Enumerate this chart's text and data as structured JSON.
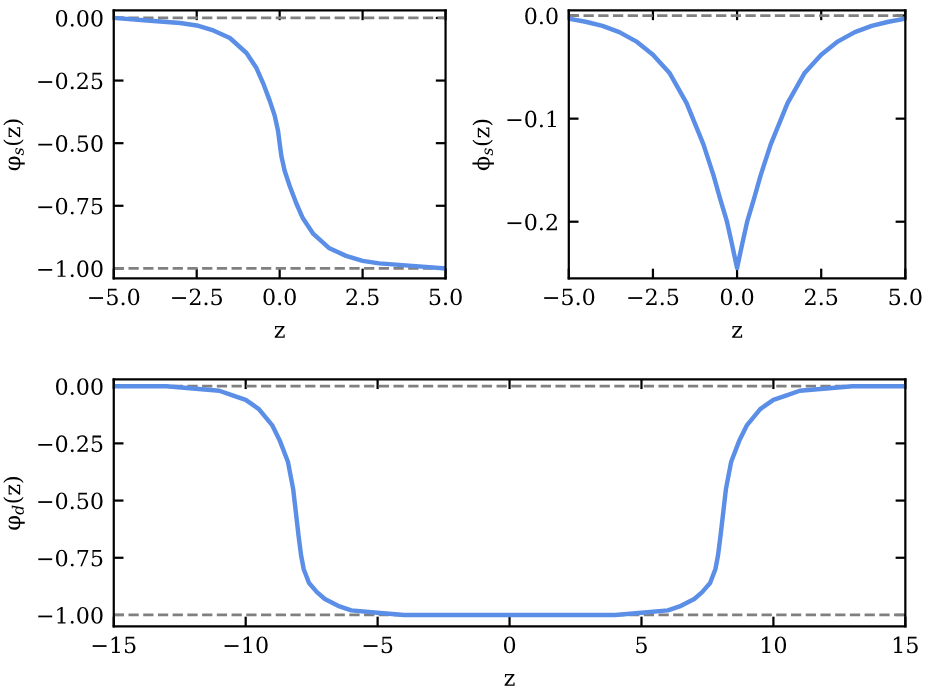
{
  "chart_data": [
    {
      "type": "line",
      "xlabel": "z",
      "ylabel": "φ$_{s}$(z)",
      "xlim": [
        -5,
        5
      ],
      "ylim": [
        -1.04,
        0.03
      ],
      "xticks": [
        {
          "value": -5,
          "label": "−5.0"
        },
        {
          "value": -2.5,
          "label": "−2.5"
        },
        {
          "value": 0,
          "label": "0.0"
        },
        {
          "value": 2.5,
          "label": "2.5"
        },
        {
          "value": 5,
          "label": "5.0"
        }
      ],
      "yticks": [
        {
          "value": 0,
          "label": "0.00"
        },
        {
          "value": -0.25,
          "label": "−0.25"
        },
        {
          "value": -0.5,
          "label": "−0.50"
        },
        {
          "value": -0.75,
          "label": "−0.75"
        },
        {
          "value": -1,
          "label": "−1.00"
        }
      ],
      "grid": false,
      "legend": false,
      "marker": "none",
      "line_style": "solid",
      "ref_lines": [
        {
          "axis": "y",
          "value": 0,
          "color": "#808080",
          "line_style": "dashed"
        },
        {
          "axis": "y",
          "value": -1,
          "color": "#808080",
          "line_style": "dashed"
        }
      ],
      "series": [
        {
          "color": "#5b8ee6",
          "x": [
            -5,
            -4,
            -3,
            -2.5,
            -2,
            -1.5,
            -1,
            -0.7,
            -0.5,
            -0.3,
            -0.15,
            -0.05,
            0,
            0.05,
            0.15,
            0.3,
            0.5,
            0.7,
            1,
            1.5,
            2,
            2.5,
            3,
            4,
            5
          ],
          "values": [
            0,
            -0.01,
            -0.02,
            -0.03,
            -0.05,
            -0.08,
            -0.14,
            -0.2,
            -0.26,
            -0.33,
            -0.39,
            -0.45,
            -0.5,
            -0.55,
            -0.61,
            -0.67,
            -0.74,
            -0.8,
            -0.86,
            -0.92,
            -0.95,
            -0.97,
            -0.98,
            -0.99,
            -1
          ]
        }
      ]
    },
    {
      "type": "line",
      "xlabel": "z",
      "ylabel": "ϕ$_{s}$(z)",
      "xlim": [
        -5,
        5
      ],
      "ylim": [
        -0.255,
        0.005
      ],
      "xticks": [
        {
          "value": -5,
          "label": "−5.0"
        },
        {
          "value": -2.5,
          "label": "−2.5"
        },
        {
          "value": 0,
          "label": "0.0"
        },
        {
          "value": 2.5,
          "label": "2.5"
        },
        {
          "value": 5,
          "label": "5.0"
        }
      ],
      "yticks": [
        {
          "value": 0,
          "label": "0.0"
        },
        {
          "value": -0.1,
          "label": "−0.1"
        },
        {
          "value": -0.2,
          "label": "−0.2"
        }
      ],
      "grid": false,
      "legend": false,
      "marker": "none",
      "line_style": "solid",
      "ref_lines": [
        {
          "axis": "y",
          "value": 0,
          "color": "#808080",
          "line_style": "dashed"
        }
      ],
      "series": [
        {
          "color": "#5b8ee6",
          "x": [
            -5,
            -4.5,
            -4,
            -3.5,
            -3,
            -2.5,
            -2,
            -1.5,
            -1,
            -0.7,
            -0.5,
            -0.3,
            -0.15,
            0,
            0.15,
            0.3,
            0.5,
            0.7,
            1,
            1.5,
            2,
            2.5,
            3,
            3.5,
            4,
            4.5,
            5
          ],
          "values": [
            -0.003,
            -0.006,
            -0.01,
            -0.016,
            -0.025,
            -0.038,
            -0.056,
            -0.085,
            -0.125,
            -0.155,
            -0.178,
            -0.2,
            -0.222,
            -0.245,
            -0.222,
            -0.2,
            -0.178,
            -0.155,
            -0.125,
            -0.085,
            -0.056,
            -0.038,
            -0.025,
            -0.016,
            -0.01,
            -0.006,
            -0.003
          ]
        }
      ]
    },
    {
      "type": "line",
      "xlabel": "z",
      "ylabel": "φ$_{d}$(z)",
      "xlim": [
        -15,
        15
      ],
      "ylim": [
        -1.05,
        0.03
      ],
      "xticks": [
        {
          "value": -15,
          "label": "−15"
        },
        {
          "value": -10,
          "label": "−10"
        },
        {
          "value": -5,
          "label": "−5"
        },
        0,
        5,
        10,
        15
      ],
      "yticks": [
        {
          "value": 0,
          "label": "0.00"
        },
        {
          "value": -0.25,
          "label": "−0.25"
        },
        {
          "value": -0.5,
          "label": "−0.50"
        },
        {
          "value": -0.75,
          "label": "−0.75"
        },
        {
          "value": -1,
          "label": "−1.00"
        }
      ],
      "grid": false,
      "legend": false,
      "marker": "none",
      "line_style": "solid",
      "ref_lines": [
        {
          "axis": "y",
          "value": 0,
          "color": "#808080",
          "line_style": "dashed"
        },
        {
          "axis": "y",
          "value": -1,
          "color": "#808080",
          "line_style": "dashed"
        }
      ],
      "series": [
        {
          "color": "#5b8ee6",
          "x": [
            -15,
            -13,
            -12,
            -11,
            -10.5,
            -10,
            -9.5,
            -9,
            -8.7,
            -8.4,
            -8.2,
            -8.1,
            -8,
            -7.9,
            -7.8,
            -7.6,
            -7.3,
            -7,
            -6.5,
            -6,
            -5,
            -4,
            -2,
            0,
            2,
            4,
            5,
            6,
            6.5,
            7,
            7.3,
            7.6,
            7.8,
            7.9,
            8,
            8.1,
            8.2,
            8.4,
            8.7,
            9,
            9.5,
            10,
            10.5,
            11,
            12,
            13,
            15
          ],
          "values": [
            0,
            0,
            -0.01,
            -0.02,
            -0.04,
            -0.06,
            -0.1,
            -0.17,
            -0.24,
            -0.33,
            -0.45,
            -0.55,
            -0.65,
            -0.74,
            -0.8,
            -0.86,
            -0.9,
            -0.93,
            -0.96,
            -0.98,
            -0.99,
            -1,
            -1,
            -1,
            -1,
            -1,
            -0.99,
            -0.98,
            -0.96,
            -0.93,
            -0.9,
            -0.86,
            -0.8,
            -0.74,
            -0.65,
            -0.55,
            -0.45,
            -0.33,
            -0.24,
            -0.17,
            -0.1,
            -0.06,
            -0.04,
            -0.02,
            -0.01,
            0,
            0
          ]
        }
      ]
    }
  ]
}
